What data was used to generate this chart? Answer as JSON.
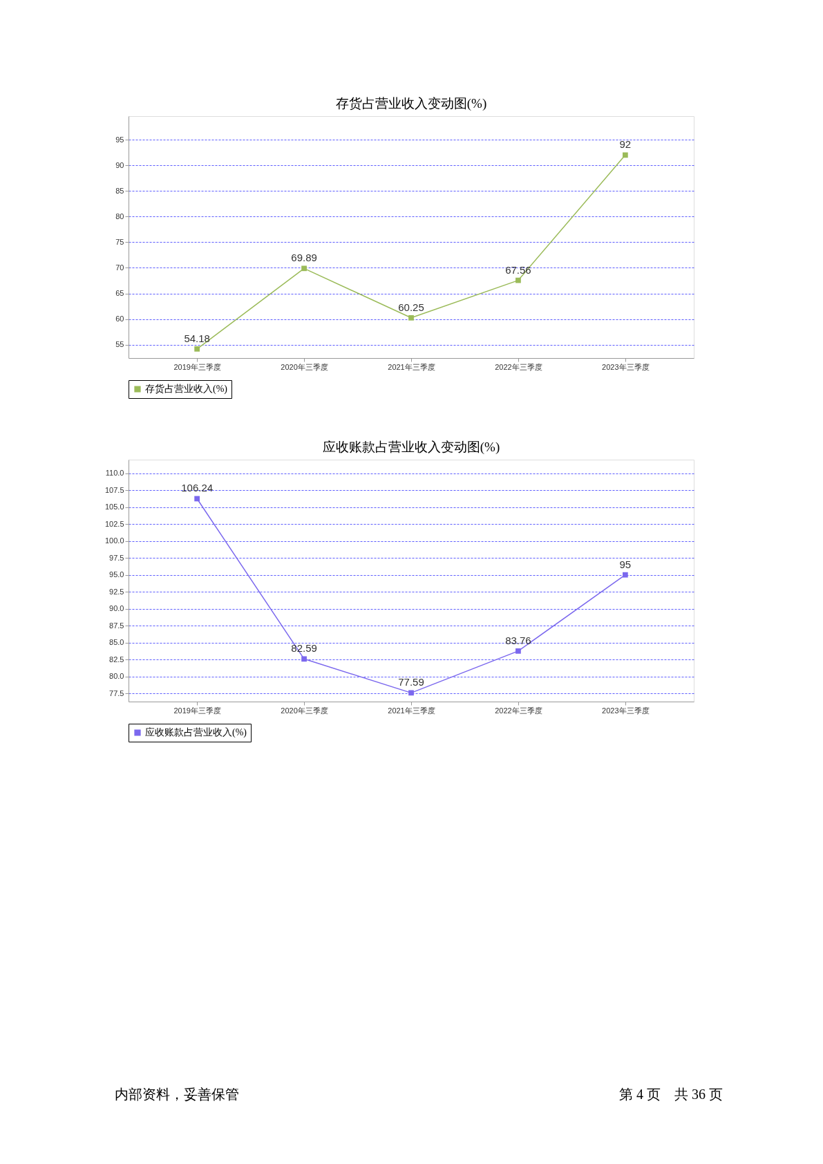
{
  "chart_data": [
    {
      "type": "line",
      "title": "存货占营业收入变动图(%)",
      "categories": [
        "2019年三季度",
        "2020年三季度",
        "2021年三季度",
        "2022年三季度",
        "2023年三季度"
      ],
      "series": [
        {
          "name": "存货占营业收入(%)",
          "color": "#9bbb59",
          "values": [
            54.18,
            69.89,
            60.25,
            67.56,
            92
          ]
        }
      ],
      "ylim": [
        52.4,
        99.6
      ],
      "yticks": [
        55,
        60,
        65,
        70,
        75,
        80,
        85,
        90,
        95
      ],
      "grid": "y",
      "legend": "bottom",
      "marker": "square",
      "line_style": "solid",
      "data_labels": true
    },
    {
      "type": "line",
      "title": "应收账款占营业收入变动图(%)",
      "categories": [
        "2019年三季度",
        "2020年三季度",
        "2021年三季度",
        "2022年三季度",
        "2023年三季度"
      ],
      "series": [
        {
          "name": "应收账款占营业收入(%)",
          "color": "#7b68ee",
          "values": [
            106.24,
            82.59,
            77.59,
            83.76,
            95
          ]
        }
      ],
      "ylim": [
        76.3,
        112
      ],
      "yticks": [
        {
          "value": 77.5,
          "label": "77.5"
        },
        {
          "value": 80,
          "label": "80.0"
        },
        {
          "value": 82.5,
          "label": "82.5"
        },
        {
          "value": 85,
          "label": "85.0"
        },
        {
          "value": 87.5,
          "label": "87.5"
        },
        {
          "value": 90,
          "label": "90.0"
        },
        {
          "value": 92.5,
          "label": "92.5"
        },
        {
          "value": 95,
          "label": "95.0"
        },
        {
          "value": 97.5,
          "label": "97.5"
        },
        {
          "value": 100,
          "label": "100.0"
        },
        {
          "value": 102.5,
          "label": "102.5"
        },
        {
          "value": 105,
          "label": "105.0"
        },
        {
          "value": 107.5,
          "label": "107.5"
        },
        {
          "value": 110,
          "label": "110.0"
        }
      ],
      "grid": "y",
      "legend": "bottom",
      "marker": "square",
      "line_style": "solid",
      "data_labels": true,
      "annotations": [
        "内部资料，妥善保管",
        "第 4 页　共 36 页"
      ]
    }
  ]
}
